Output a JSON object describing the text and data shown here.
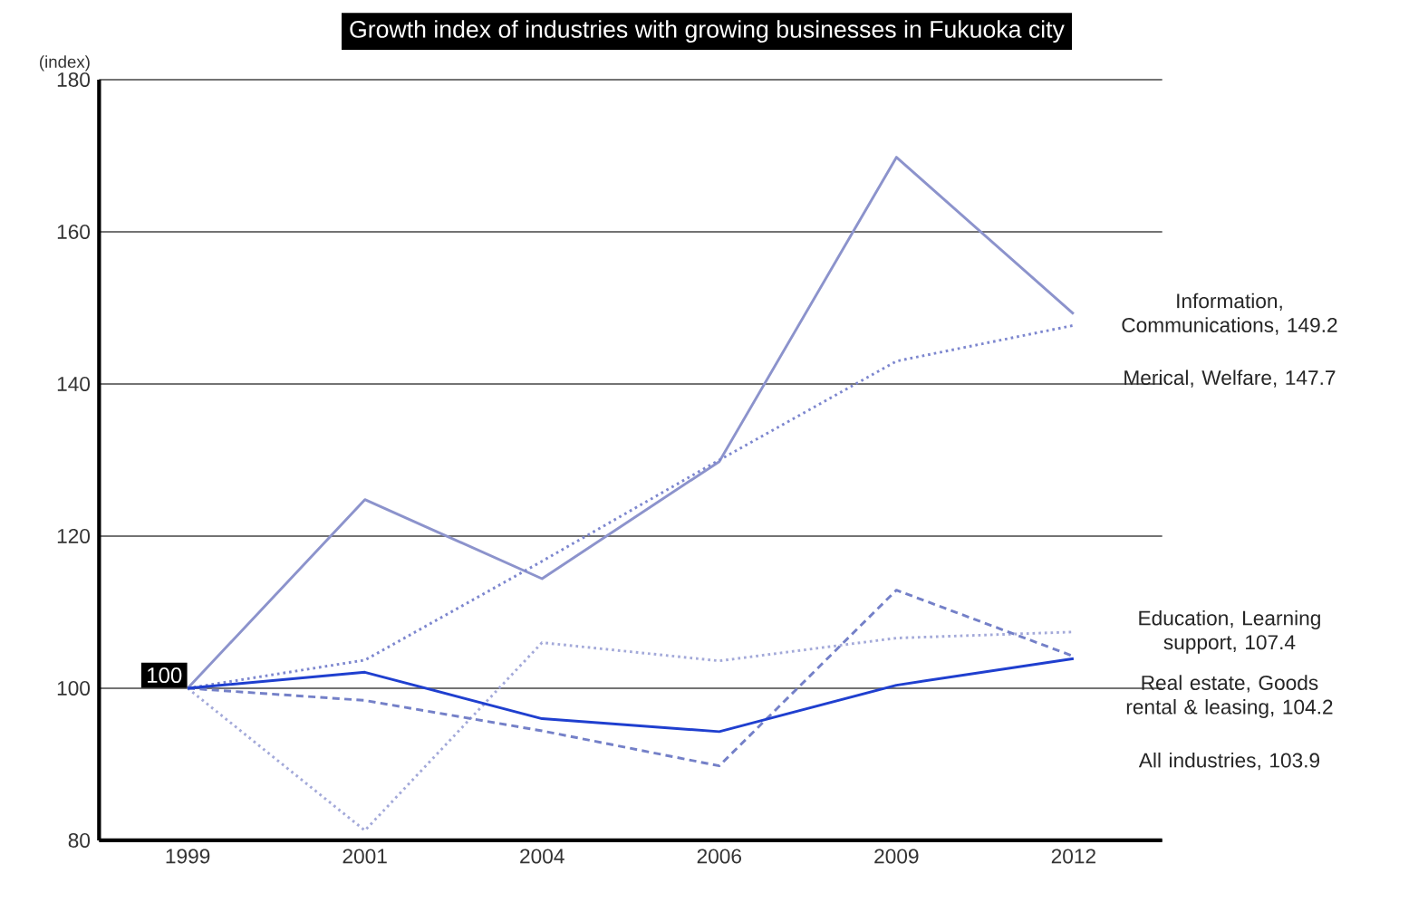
{
  "chart_data": {
    "type": "line",
    "title": "Growth index of industries with growing businesses in Fukuoka city",
    "ylabel": "(index)",
    "categories": [
      "1999",
      "2001",
      "2004",
      "2006",
      "2009",
      "2012"
    ],
    "ylim": [
      80,
      180
    ],
    "yticks": [
      80,
      100,
      120,
      140,
      160,
      180
    ],
    "grid": "y",
    "marker": "none",
    "series": [
      {
        "color": "#8c93cc",
        "line_style": "solid",
        "values": [
          100,
          124.8,
          114.4,
          129.8,
          169.8,
          149.2
        ]
      },
      {
        "color": "#7d87cf",
        "line_style": "dotted",
        "values": [
          100,
          103.7,
          116.7,
          130,
          143,
          147.7
        ]
      },
      {
        "color": "#a3a9d9",
        "line_style": "dotted",
        "values": [
          100,
          81.3,
          106,
          103.6,
          106.6,
          107.4
        ]
      },
      {
        "color": "#7480c8",
        "line_style": "dashed",
        "values": [
          100,
          98.4,
          94.4,
          89.8,
          112.9,
          104.2
        ]
      },
      {
        "color": "#1f3fcf",
        "line_style": "solid",
        "values": [
          100,
          102.1,
          96,
          94.3,
          100.4,
          103.9
        ],
        "value_labels": [
          "100",
          null,
          null,
          null,
          null,
          null
        ]
      }
    ],
    "annotations": [
      "Information, Communications, 149.2",
      "Merical, Welfare, 147.7",
      "Education, Learning support, 107.4",
      "Real estate, Goods rental & leasing, 104.2",
      "All industries, 103.9"
    ]
  }
}
